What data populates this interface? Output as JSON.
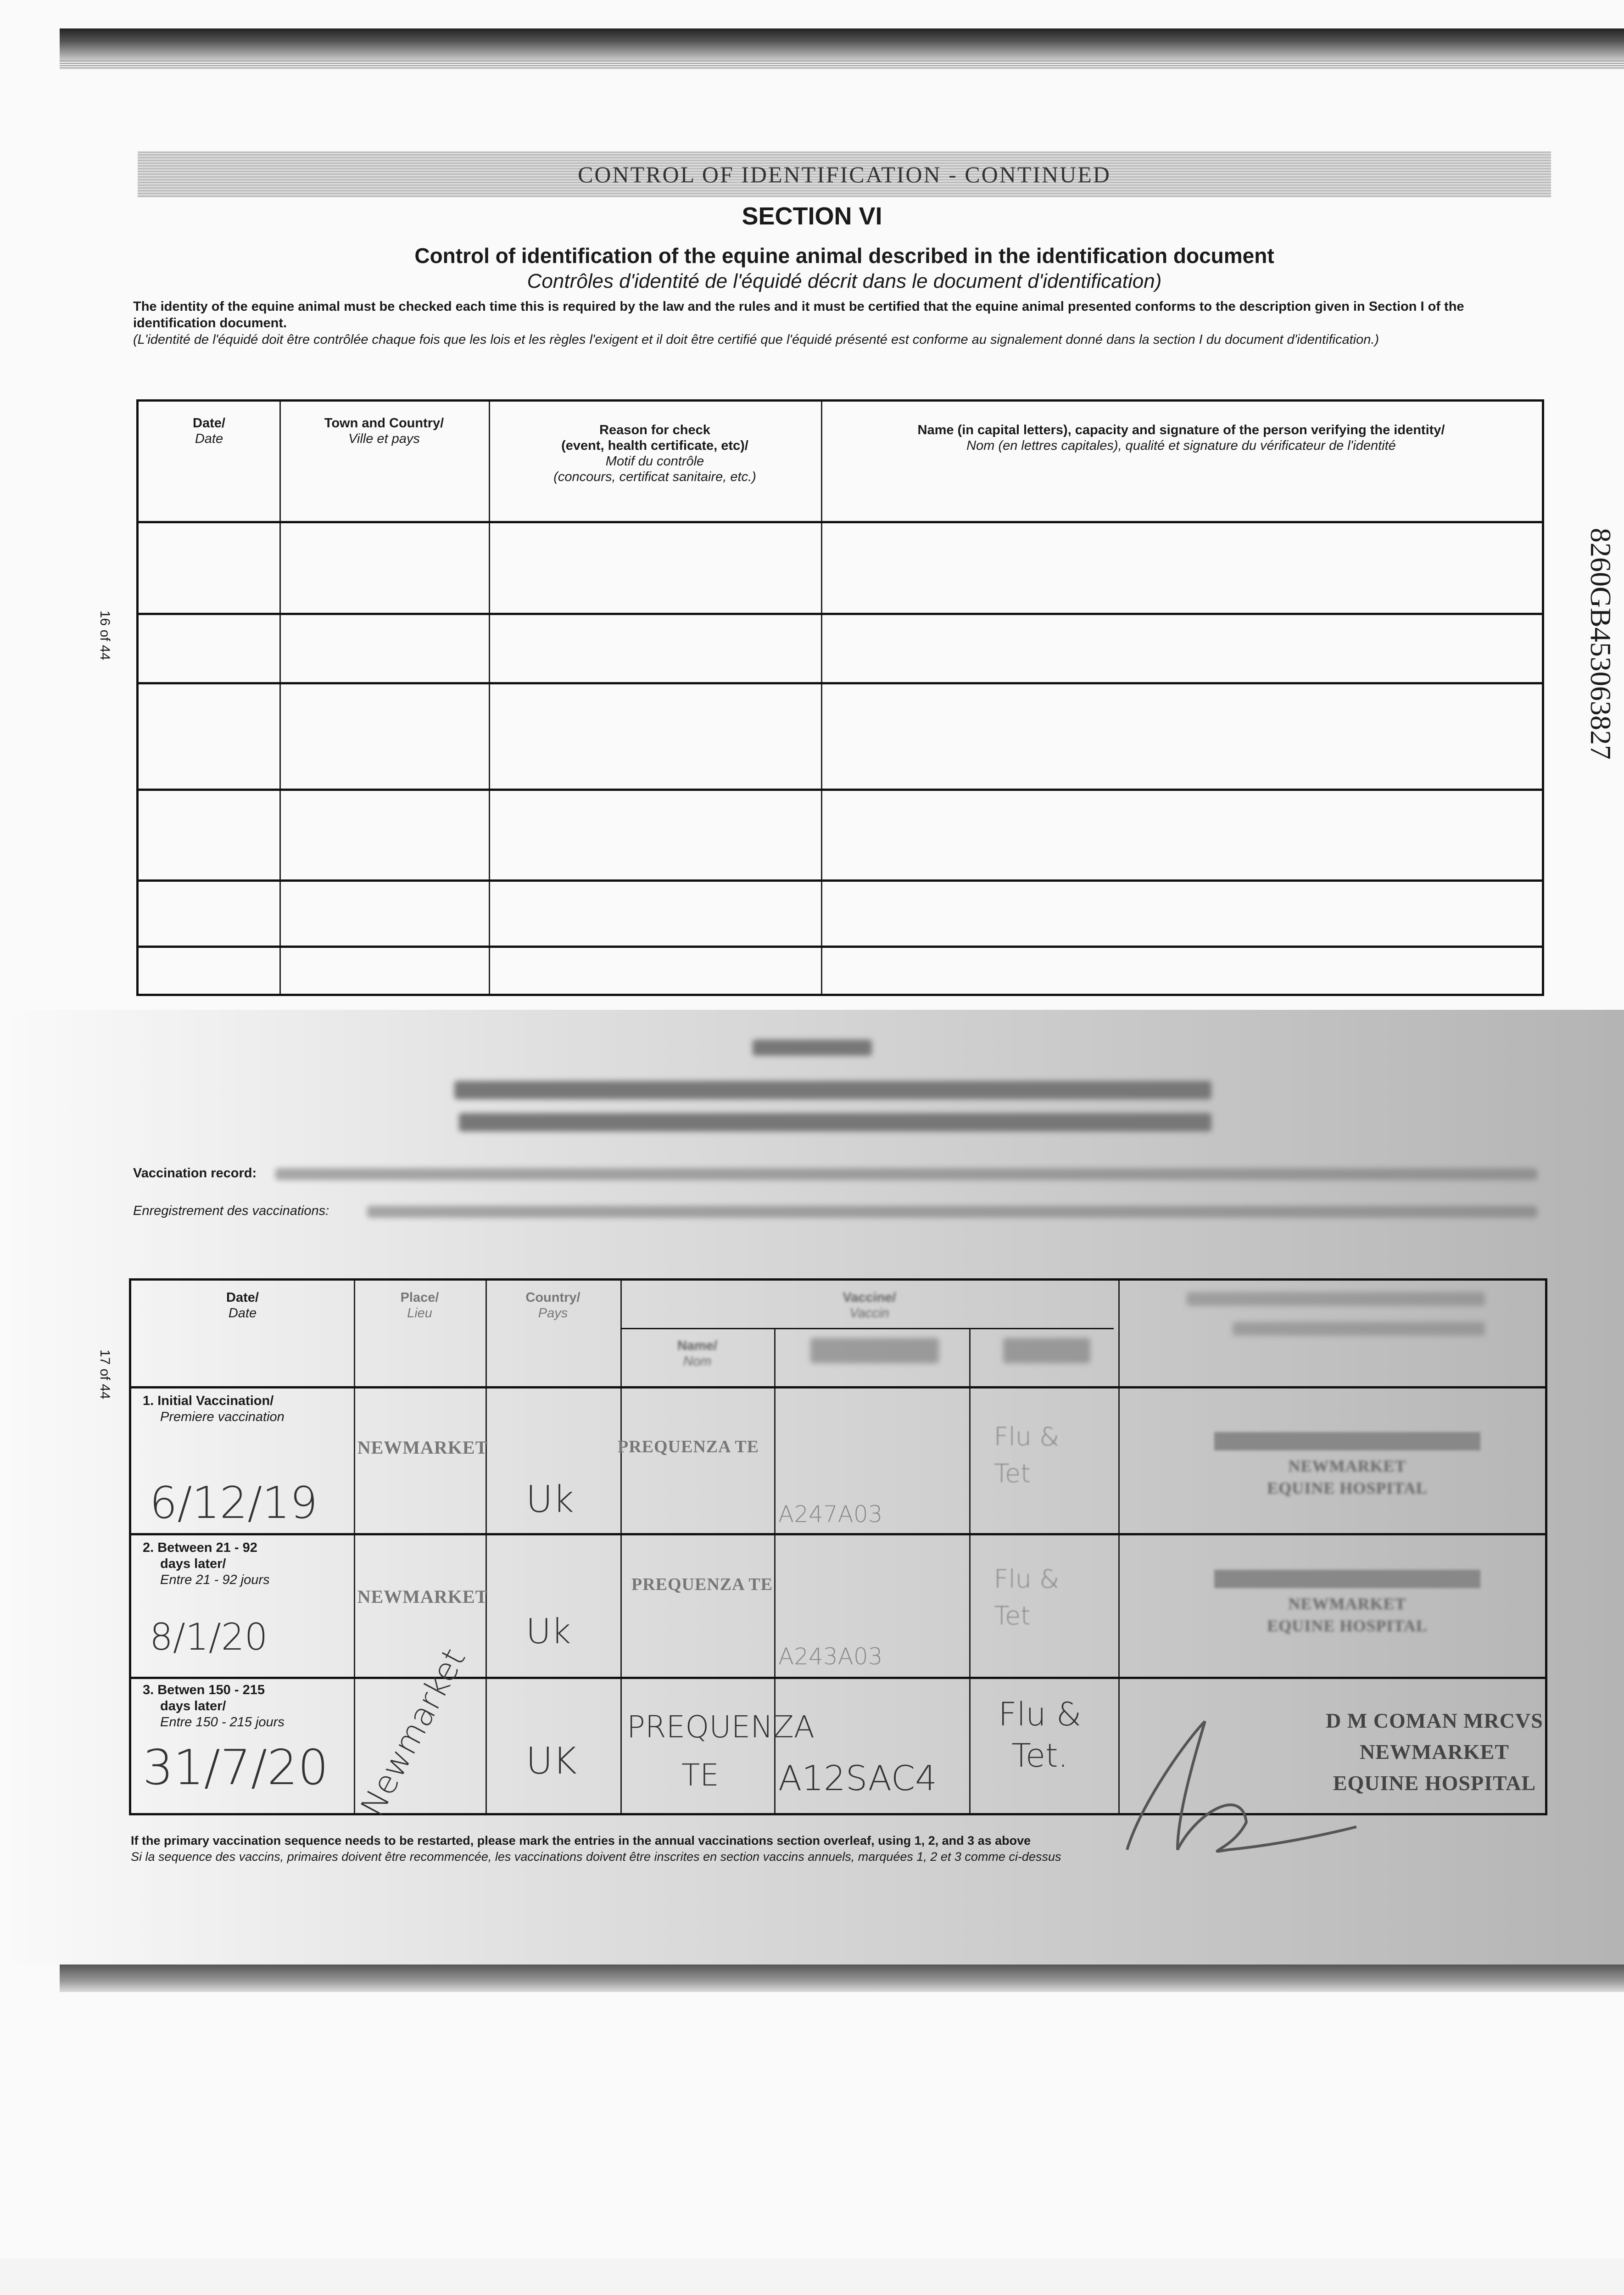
{
  "header": {
    "band": "CONTROL OF IDENTIFICATION - CONTINUED",
    "section": "SECTION VI",
    "title": "Control of identification of the equine animal described in the identification document",
    "title_fr": "Contrôles d'identité de l'équidé décrit dans le document d'identification)",
    "intro": "The identity of the equine animal must be checked each time this is required by the law and the rules and it must be certified that the equine animal presented conforms to the description given in Section I of the identification document.",
    "intro_fr": "(L'identité de l'équidé doit être contrôlée chaque fois que les lois et les règles l'exigent et il doit être certifié que l'équidé présenté est conforme au signalement donné dans la section I du document d'identification.)"
  },
  "page_labels": {
    "top": "16 of 44",
    "bottom": "17 of 44"
  },
  "id_number": "8260GB453063827",
  "id_table": {
    "columns": [
      {
        "en": "Date/",
        "fr": "Date"
      },
      {
        "en": "Town and Country/",
        "fr": "Ville et pays"
      },
      {
        "en": "Reason for check",
        "en2": "(event, health certificate, etc)/",
        "fr": "Motif du contrôle",
        "fr2": "(concours, certificat sanitaire, etc.)"
      },
      {
        "en": "Name (in capital letters), capacity and signature of the person verifying the identity/",
        "fr": "Nom (en lettres capitales), qualité et signature du vérificateur de l'identité"
      }
    ],
    "row_count": 6
  },
  "vaccination": {
    "record_label": "Vaccination record:",
    "record_label_fr": "Enregistrement des vaccinations:",
    "columns": {
      "date": {
        "en": "Date/",
        "fr": "Date"
      },
      "place": {
        "en": "Place/",
        "fr": "Lieu"
      },
      "country": {
        "en": "Country/",
        "fr": "Pays"
      },
      "vaccine": {
        "en": "Vaccine/",
        "fr": "Vaccin"
      },
      "name": {
        "en": "Name/",
        "fr": "Nom"
      }
    },
    "rows": [
      {
        "label": "1. Initial Vaccination/",
        "label_fr": "Premiere vaccination",
        "date": "6/12/19",
        "place": "NEWMARKET",
        "country": "Uk",
        "vaccine": "PREQUENZA TE",
        "batch": "A247A03",
        "strength": "Flu & Tet",
        "stamp": [
          "NEWMARKET",
          "EQUINE HOSPITAL"
        ]
      },
      {
        "label": "2. Between 21 - 92",
        "label2": "days later/",
        "label_fr": "Entre 21 - 92 jours",
        "date": "8/1/20",
        "place": "NEWMARKET",
        "country": "Uk",
        "vaccine": "PREQUENZA TE",
        "batch": "A243A03",
        "strength": "Flu & Tet",
        "stamp": [
          "NEWMARKET",
          "EQUINE HOSPITAL"
        ]
      },
      {
        "label": "3. Betwen 150 - 215",
        "label2": "days later/",
        "label_fr": "Entre 150 - 215 jours",
        "date": "31/7/20",
        "place": "Newmarket",
        "country": "UK",
        "vaccine": "PREQUENZA TE",
        "batch": "A12SAC4",
        "strength": "Flu & Tet.",
        "stamp": [
          "D M COMAN MRCVS",
          "NEWMARKET",
          "EQUINE HOSPITAL"
        ]
      }
    ],
    "footnote": "If the primary vaccination sequence needs to be restarted, please mark the entries in the annual vaccinations section overleaf, using 1, 2, and 3 as above",
    "footnote_fr": "Si la sequence des vaccins, primaires doivent être recommencée, les vaccinations doivent être inscrites en section vaccins annuels, marquées 1, 2 et 3 comme ci-dessus"
  }
}
